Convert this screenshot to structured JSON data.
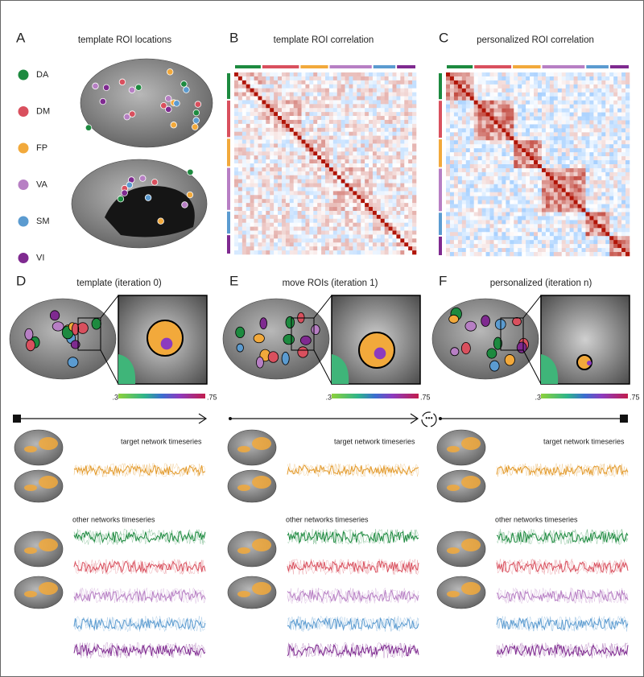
{
  "panels": [
    {
      "letter": "A",
      "title": "template ROI locations"
    },
    {
      "letter": "B",
      "title": "template ROI correlation"
    },
    {
      "letter": "C",
      "title": "personalized ROI correlation"
    },
    {
      "letter": "D",
      "title": "template (iteration 0)"
    },
    {
      "letter": "E",
      "title": "move ROIs (iteration 1)"
    },
    {
      "letter": "F",
      "title": "personalized (iteration n)"
    }
  ],
  "legend": [
    {
      "label": "DA",
      "color": "#1d8a3f"
    },
    {
      "label": "DM",
      "color": "#d9505e"
    },
    {
      "label": "FP",
      "color": "#f2a93b"
    },
    {
      "label": "VA",
      "color": "#b77fc4"
    },
    {
      "label": "SM",
      "color": "#5b9bd0"
    },
    {
      "label": "VI",
      "color": "#7f2a90"
    }
  ],
  "colorbars": [
    {
      "min": ".3",
      "max": ".75"
    },
    {
      "min": ".3",
      "max": ".75"
    },
    {
      "min": ".3",
      "max": ".75"
    }
  ],
  "timeseries": [
    {
      "target": "target network timeseries",
      "other": "other networks timeseries"
    },
    {
      "target": "target network timeseries",
      "other": "other networks timeseries"
    },
    {
      "target": "target network timeseries",
      "other": "other networks timeseries"
    }
  ]
}
